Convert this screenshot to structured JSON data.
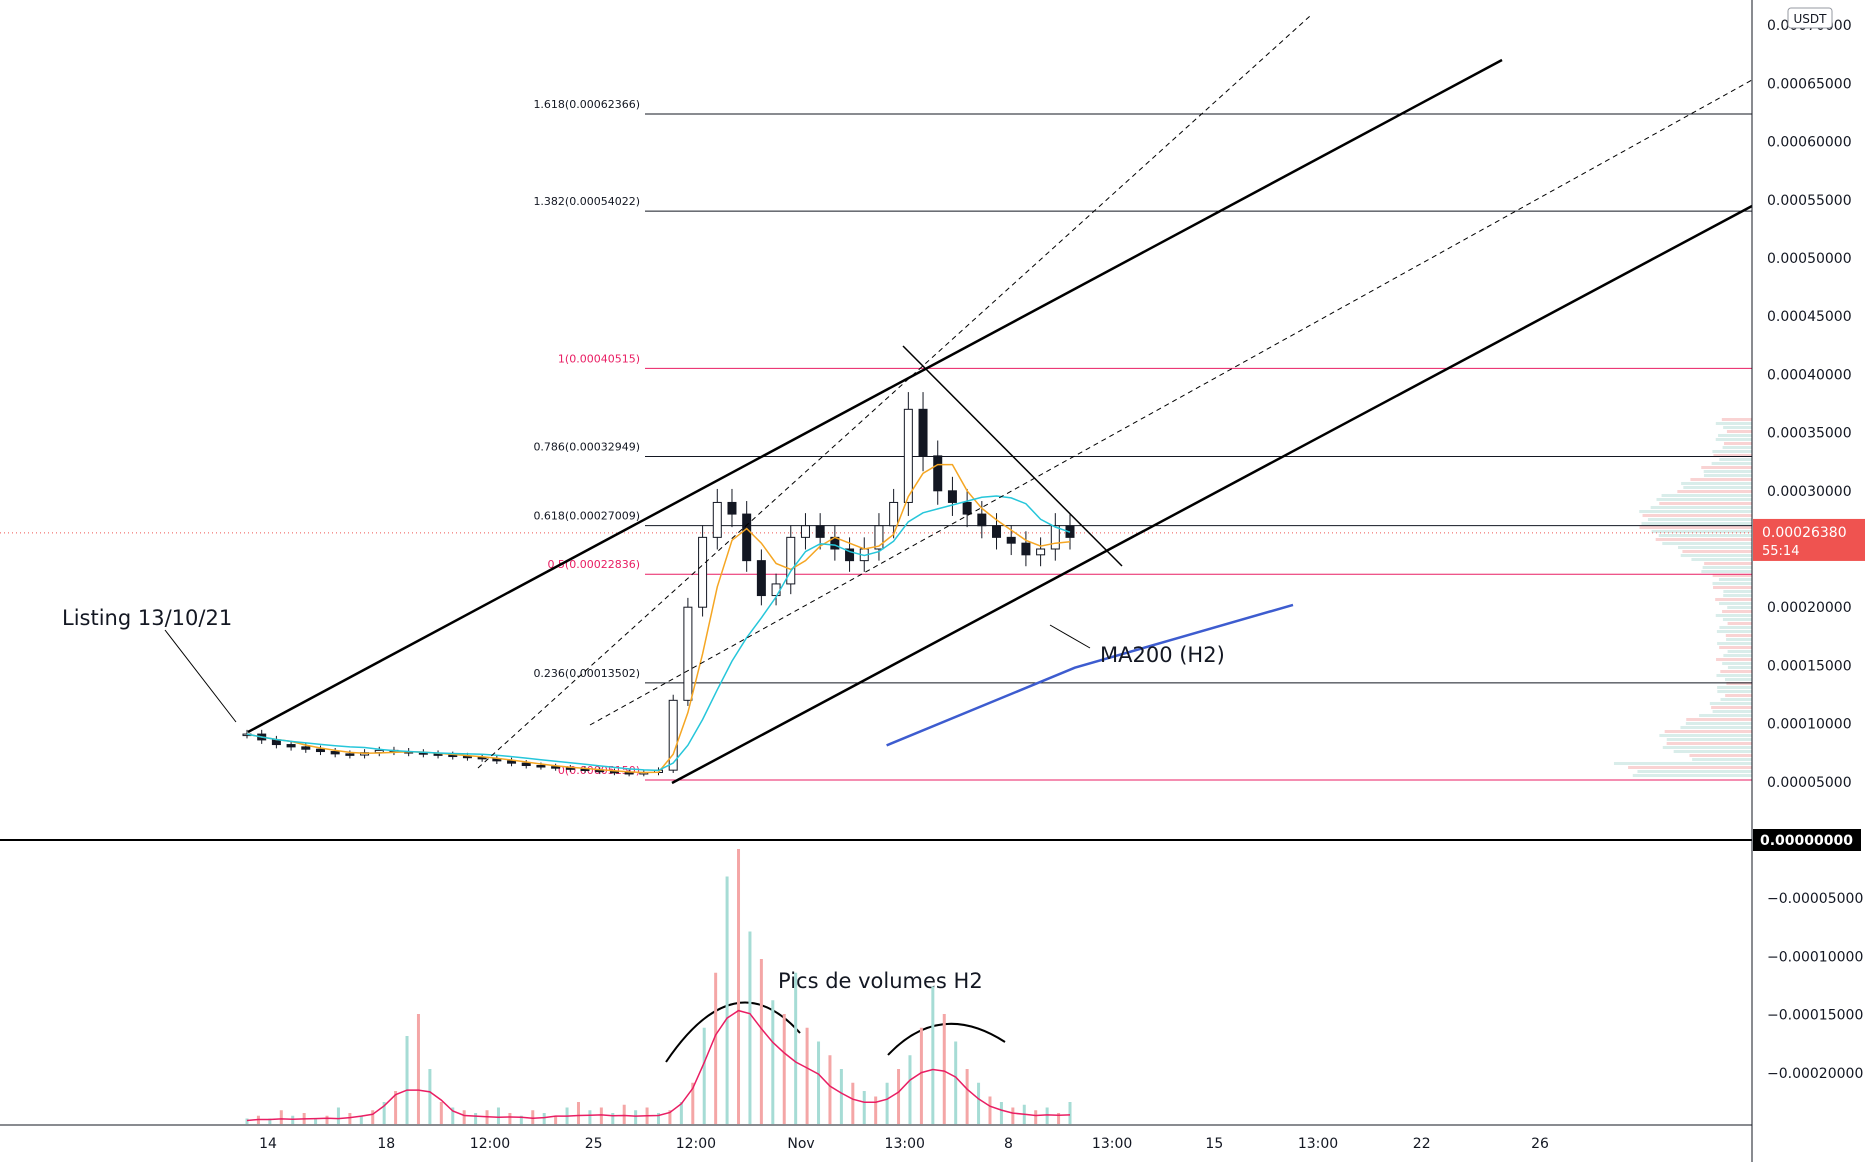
{
  "chart_data": [
    {
      "type": "candlestick",
      "currency": "USDT",
      "y_axis": {
        "ylim": [
          -0.0002479,
          0.000694
        ],
        "ticks": [
          "0.00070000",
          "0.00065000",
          "0.00060000",
          "0.00055000",
          "0.00050000",
          "0.00045000",
          "0.00040000",
          "0.00035000",
          "0.00030000",
          "0.00025000",
          "0.00020000",
          "0.00015000",
          "0.00010000",
          "0.00005000",
          "0.00000000",
          "-0.00005000",
          "-0.00010000",
          "-0.00015000",
          "-0.00020000"
        ],
        "tick_values": [
          0.0007,
          0.00065,
          0.0006,
          0.00055,
          0.0005,
          0.00045,
          0.0004,
          0.00035,
          0.0003,
          0.00025,
          0.0002,
          0.00015,
          0.0001,
          5e-05,
          0.0,
          -5e-05,
          -0.0001,
          -0.00015,
          -0.0002
        ]
      },
      "x_axis": {
        "ticks": [
          "14",
          "18",
          "12:00",
          "25",
          "12:00",
          "Nov",
          "13:00",
          "8",
          "13:00",
          "15",
          "13:00",
          "22",
          "26"
        ],
        "tick_fracs": [
          0.0,
          0.081,
          0.152,
          0.223,
          0.293,
          0.365,
          0.436,
          0.507,
          0.578,
          0.648,
          0.719,
          0.79,
          0.871
        ]
      },
      "price": {
        "current": "0.00026380",
        "countdown": "55:14",
        "current_value": 0.0002638,
        "zero_label": "0.00000000"
      },
      "close_series": [
        9.1e-05,
        8.6e-05,
        8.2e-05,
        8e-05,
        7.8e-05,
        7.6e-05,
        7.4e-05,
        7.3e-05,
        7.5e-05,
        7.7e-05,
        7.6e-05,
        7.5e-05,
        7.4e-05,
        7.3e-05,
        7.2e-05,
        7.1e-05,
        7e-05,
        6.8e-05,
        6.6e-05,
        6.4e-05,
        6.3e-05,
        6.2e-05,
        6.1e-05,
        6e-05,
        5.9e-05,
        5.8e-05,
        5.7e-05,
        5.8e-05,
        6e-05,
        0.00012,
        0.0002,
        0.00026,
        0.00029,
        0.00028,
        0.00024,
        0.00021,
        0.00022,
        0.00026,
        0.00027,
        0.00026,
        0.00025,
        0.00024,
        0.00025,
        0.00027,
        0.00029,
        0.00037,
        0.00033,
        0.0003,
        0.00029,
        0.00028,
        0.00027,
        0.00026,
        0.000255,
        0.000245,
        0.00025,
        0.00027,
        0.00026
      ],
      "series": [
        {
          "name": "MA200 (H2)",
          "color": "#3d5ccf",
          "points": [
            [
              0.425,
              8.13e-05
            ],
            [
              0.55,
              0.000148
            ],
            [
              0.695,
              0.000202
            ]
          ]
        }
      ],
      "fib_levels": [
        {
          "label": "1.618(0.00062366)",
          "value": 0.00062366,
          "color": "#131722"
        },
        {
          "label": "1.382(0.00054022)",
          "value": 0.00054022,
          "color": "#131722"
        },
        {
          "label": "1(0.00040515)",
          "value": 0.00040515,
          "color": "#e91e63"
        },
        {
          "label": "0.786(0.00032949)",
          "value": 0.00032949,
          "color": "#131722"
        },
        {
          "label": "0.618(0.00027009)",
          "value": 0.00027009,
          "color": "#131722"
        },
        {
          "label": "0.5(0.00022836)",
          "value": 0.00022836,
          "color": "#e91e63"
        },
        {
          "label": "0.236(0.00013502)",
          "value": 0.00013502,
          "color": "#131722"
        },
        {
          "label": "0(0.00005150)",
          "value": 5.15e-05,
          "color": "#e91e63"
        }
      ],
      "annotations": [
        {
          "text": "Listing 13/10/21"
        },
        {
          "text": "MA200 (H2)"
        },
        {
          "text": "Pics de volumes H2"
        }
      ],
      "grid": false,
      "colors": {
        "up": "#26a69a",
        "down": "#ef5350",
        "fib_pink": "#e91e63",
        "ma_blue": "#3d5ccf",
        "ma_teal": "#26c6da",
        "ma_orange": "#f5a623",
        "volume_line": "#e91e63"
      }
    },
    {
      "type": "bar",
      "title": "",
      "volume_series": [
        0.02,
        0.03,
        0.02,
        0.05,
        0.03,
        0.04,
        0.02,
        0.03,
        0.06,
        0.04,
        0.03,
        0.05,
        0.08,
        0.12,
        0.32,
        0.4,
        0.2,
        0.08,
        0.06,
        0.05,
        0.04,
        0.05,
        0.06,
        0.04,
        0.03,
        0.05,
        0.04,
        0.03,
        0.06,
        0.08,
        0.05,
        0.06,
        0.04,
        0.07,
        0.05,
        0.06,
        0.04,
        0.05,
        0.08,
        0.15,
        0.35,
        0.55,
        0.9,
        1.0,
        0.7,
        0.6,
        0.45,
        0.4,
        0.55,
        0.35,
        0.3,
        0.25,
        0.2,
        0.15,
        0.12,
        0.1,
        0.15,
        0.2,
        0.25,
        0.35,
        0.5,
        0.4,
        0.3,
        0.2,
        0.15,
        0.1,
        0.08,
        0.06,
        0.07,
        0.05,
        0.06,
        0.04,
        0.08
      ]
    }
  ]
}
